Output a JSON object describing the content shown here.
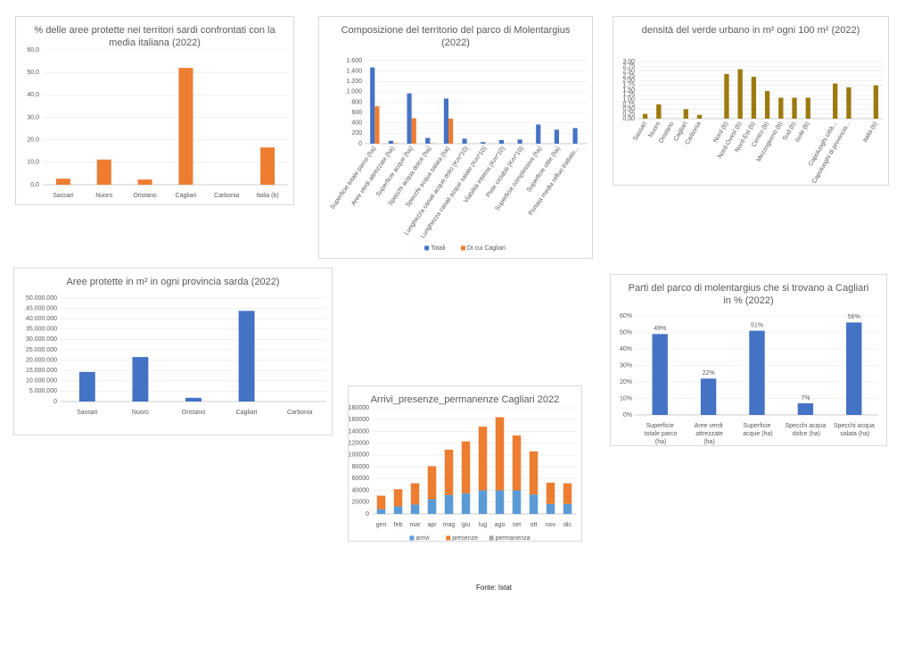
{
  "chart_data": [
    {
      "type": "bar",
      "title": "% delle aree protette nei territori sardi confrontati con la media italiana (2022)",
      "categories": [
        "Sassari",
        "Nuoro",
        "Oristano",
        "Cagliari",
        "Carbonia",
        "Italia (b)"
      ],
      "values": [
        2.7,
        11.2,
        2.3,
        52.0,
        0,
        16.6
      ],
      "color": "#ed7d31",
      "ylim": [
        0,
        60
      ],
      "yticks": [
        {
          "value": 0,
          "label": "0,0"
        },
        {
          "value": 10,
          "label": "10,0"
        },
        {
          "value": 20,
          "label": "20,0"
        },
        {
          "value": 30,
          "label": "30,0"
        },
        {
          "value": 40,
          "label": "40,0"
        },
        {
          "value": 50,
          "label": "50,0"
        },
        {
          "value": 60,
          "label": "60,0"
        }
      ],
      "grid": true
    },
    {
      "type": "bar",
      "title": "Composizione del territorio del parco di Molentargius (2022)",
      "categories": [
        "Superficie totale parco (ha)",
        "Aree verdi attrezzate (ha)",
        "Superficie acque (ha)",
        "Specchi acqua dolce (ha)",
        "Specchi acqua salata (ha)",
        "Lunghezza canali acque dolci (Km*10)",
        "Lunghezza canali acque salate (Km*10)",
        "Viabilità interna (Km*10)",
        "Piste ciclabili (Km*10)",
        "Superficie complessiva (ha)",
        "Superficie utile (ha)",
        "Portata media refluo trattato..."
      ],
      "series": [
        {
          "name": "Totali",
          "color": "#4472c4",
          "values": [
            1470,
            55,
            970,
            110,
            870,
            95,
            30,
            70,
            80,
            370,
            270,
            300
          ]
        },
        {
          "name": "Di cui Cagliari",
          "color": "#ed7d31",
          "values": [
            720,
            10,
            490,
            8,
            485,
            null,
            null,
            null,
            null,
            null,
            null,
            null
          ]
        }
      ],
      "ylim": [
        0,
        1600
      ],
      "yticks": [
        0,
        200,
        400,
        600,
        800,
        {
          "value": 1000,
          "label": "1.000"
        },
        {
          "value": 1200,
          "label": "1.200"
        },
        {
          "value": 1400,
          "label": "1.400"
        },
        {
          "value": 1600,
          "label": "1.600"
        }
      ],
      "grid": true,
      "legend": "bottom"
    },
    {
      "type": "bar",
      "title": "densità del verde urbano in m² ogni 100 m² (2022)",
      "categories": [
        "Sassari",
        "Nuoro",
        "Oristano",
        "Cagliari",
        "Carbonia",
        null,
        "Nord (b)",
        "Nord-Ovest (b)",
        "Nord-Est (b)",
        "Centro (b)",
        "Mezzogiorno (b)",
        "Sud (b)",
        "Isole (b)",
        null,
        "Capoluoghi città...",
        "Capoluoghi di provincia...",
        null,
        "Italia (b)"
      ],
      "values": [
        0.25,
        0.75,
        0,
        0.5,
        0.2,
        null,
        2.35,
        2.6,
        2.2,
        1.45,
        1.1,
        1.1,
        1.1,
        null,
        1.85,
        1.65,
        null,
        1.75
      ],
      "color": "#9c7a10",
      "ylim": [
        0,
        3
      ],
      "yticks": [
        {
          "value": 0,
          "label": "0,00"
        },
        {
          "value": 0.25,
          "label": "0,25"
        },
        {
          "value": 0.5,
          "label": "0,50"
        },
        {
          "value": 0.75,
          "label": "0,75"
        },
        {
          "value": 1,
          "label": "1,00"
        },
        {
          "value": 1.25,
          "label": "1,25"
        },
        {
          "value": 1.5,
          "label": "1,50"
        },
        {
          "value": 1.75,
          "label": "1,75"
        },
        {
          "value": 2,
          "label": "2,00"
        },
        {
          "value": 2.25,
          "label": "2,25"
        },
        {
          "value": 2.5,
          "label": "2,50"
        },
        {
          "value": 2.75,
          "label": "2,75"
        },
        {
          "value": 3,
          "label": "3,00"
        }
      ],
      "grid": true
    },
    {
      "type": "bar",
      "title": "Aree protette in m² in ogni provincia sarda (2022)",
      "categories": [
        "Sassari",
        "Nuoro",
        "Oristano",
        "Cagliari",
        "Carbonia"
      ],
      "values": [
        14300000,
        21500000,
        1800000,
        43800000,
        0
      ],
      "color": "#4472c4",
      "ylim": [
        0,
        50000000
      ],
      "yticks": [
        0,
        {
          "value": 5000000,
          "label": "5.000.000"
        },
        {
          "value": 10000000,
          "label": "10.000.000"
        },
        {
          "value": 15000000,
          "label": "15.000.000"
        },
        {
          "value": 20000000,
          "label": "20.000.000"
        },
        {
          "value": 25000000,
          "label": "25.000.000"
        },
        {
          "value": 30000000,
          "label": "30.000.000"
        },
        {
          "value": 35000000,
          "label": "35.000.000"
        },
        {
          "value": 40000000,
          "label": "40.000.000"
        },
        {
          "value": 45000000,
          "label": "45.000.000"
        },
        {
          "value": 50000000,
          "label": "50.000.000"
        }
      ],
      "grid": true
    },
    {
      "type": "bar",
      "stacked": true,
      "title": "Arrivi_presenze_permanenze Cagliari 2022",
      "categories": [
        "gen",
        "feb",
        "mar",
        "apr",
        "mag",
        "giu",
        "lug",
        "ago",
        "set",
        "ott",
        "nov",
        "dic"
      ],
      "series": [
        {
          "name": "arrivi",
          "color": "#5b9bd5",
          "values": [
            8000,
            13000,
            16000,
            25000,
            32000,
            35000,
            40000,
            40000,
            40000,
            33000,
            17000,
            17000
          ]
        },
        {
          "name": "presenze",
          "color": "#ed7d31",
          "values": [
            23000,
            29000,
            36000,
            56000,
            77000,
            88000,
            108000,
            124000,
            93000,
            73000,
            36000,
            35000
          ]
        },
        {
          "name": "permanenza",
          "color": "#a5a5a5",
          "values": [
            3,
            3,
            3,
            3,
            3,
            3,
            3,
            3,
            3,
            3,
            3,
            3
          ]
        }
      ],
      "ylim": [
        0,
        180000
      ],
      "yticks": [
        0,
        20000,
        40000,
        60000,
        80000,
        100000,
        120000,
        140000,
        160000,
        180000
      ],
      "grid": true,
      "legend": "bottom"
    },
    {
      "type": "bar",
      "title": "Parti del parco di molentargius che si trovano a Cagliari in % (2022)",
      "categories": [
        "Superficie totale parco (ha)",
        "Aree verdi attrezzate (ha)",
        "Superficie acque (ha)",
        "Specchi acqua dolce (ha)",
        "Specchi acqua salata (ha)"
      ],
      "values": [
        49,
        22,
        51,
        7,
        56
      ],
      "value_labels": [
        "49%",
        "22%",
        "51%",
        "7%",
        "56%"
      ],
      "color": "#4472c4",
      "ylim": [
        0,
        60
      ],
      "yticks": [
        {
          "value": 0,
          "label": "0%"
        },
        {
          "value": 10,
          "label": "10%"
        },
        {
          "value": 20,
          "label": "20%"
        },
        {
          "value": 30,
          "label": "30%"
        },
        {
          "value": 40,
          "label": "40%"
        },
        {
          "value": 50,
          "label": "50%"
        },
        {
          "value": 60,
          "label": "60%"
        }
      ],
      "grid": true
    }
  ],
  "source": "Fonte: Istat"
}
